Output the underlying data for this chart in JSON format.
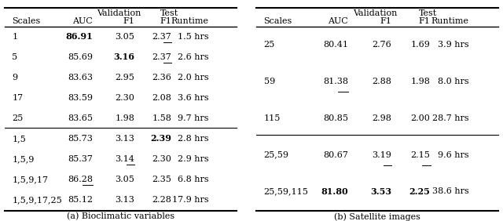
{
  "table_a": {
    "caption": "(a) Bioclimatic variables",
    "rows": [
      {
        "scales": "1",
        "auc": "86.91",
        "val_f1": "3.05",
        "test_f1": "2.37",
        "runtime": "1.5 hrs",
        "bold_auc": true,
        "bold_vf1": false,
        "bold_tf1": false,
        "ul_auc": false,
        "ul_vf1": false,
        "ul_tf1": true
      },
      {
        "scales": "5",
        "auc": "85.69",
        "val_f1": "3.16",
        "test_f1": "2.37",
        "runtime": "2.6 hrs",
        "bold_auc": false,
        "bold_vf1": true,
        "bold_tf1": false,
        "ul_auc": false,
        "ul_vf1": false,
        "ul_tf1": true
      },
      {
        "scales": "9",
        "auc": "83.63",
        "val_f1": "2.95",
        "test_f1": "2.36",
        "runtime": "2.0 hrs",
        "bold_auc": false,
        "bold_vf1": false,
        "bold_tf1": false,
        "ul_auc": false,
        "ul_vf1": false,
        "ul_tf1": false
      },
      {
        "scales": "17",
        "auc": "83.59",
        "val_f1": "2.30",
        "test_f1": "2.08",
        "runtime": "3.6 hrs",
        "bold_auc": false,
        "bold_vf1": false,
        "bold_tf1": false,
        "ul_auc": false,
        "ul_vf1": false,
        "ul_tf1": false
      },
      {
        "scales": "25",
        "auc": "83.65",
        "val_f1": "1.98",
        "test_f1": "1.58",
        "runtime": "9.7 hrs",
        "bold_auc": false,
        "bold_vf1": false,
        "bold_tf1": false,
        "ul_auc": false,
        "ul_vf1": false,
        "ul_tf1": false
      },
      {
        "scales": "1,5",
        "auc": "85.73",
        "val_f1": "3.13",
        "test_f1": "2.39",
        "runtime": "2.8 hrs",
        "bold_auc": false,
        "bold_vf1": false,
        "bold_tf1": true,
        "ul_auc": false,
        "ul_vf1": false,
        "ul_tf1": false
      },
      {
        "scales": "1,5,9",
        "auc": "85.37",
        "val_f1": "3.14",
        "test_f1": "2.30",
        "runtime": "2.9 hrs",
        "bold_auc": false,
        "bold_vf1": false,
        "bold_tf1": false,
        "ul_auc": false,
        "ul_vf1": true,
        "ul_tf1": false
      },
      {
        "scales": "1,5,9,17",
        "auc": "86.28",
        "val_f1": "3.05",
        "test_f1": "2.35",
        "runtime": "6.8 hrs",
        "bold_auc": false,
        "bold_vf1": false,
        "bold_tf1": false,
        "ul_auc": true,
        "ul_vf1": false,
        "ul_tf1": false
      },
      {
        "scales": "1,5,9,17,25",
        "auc": "85.12",
        "val_f1": "3.13",
        "test_f1": "2.28",
        "runtime": "17.9 hrs",
        "bold_auc": false,
        "bold_vf1": false,
        "bold_tf1": false,
        "ul_auc": false,
        "ul_vf1": false,
        "ul_tf1": false
      }
    ],
    "n_single": 5
  },
  "table_b": {
    "caption": "(b) Satellite images",
    "rows": [
      {
        "scales": "25",
        "auc": "80.41",
        "val_f1": "2.76",
        "test_f1": "1.69",
        "runtime": "3.9 hrs",
        "bold_auc": false,
        "bold_vf1": false,
        "bold_tf1": false,
        "ul_auc": false,
        "ul_vf1": false,
        "ul_tf1": false
      },
      {
        "scales": "59",
        "auc": "81.38",
        "val_f1": "2.88",
        "test_f1": "1.98",
        "runtime": "8.0 hrs",
        "bold_auc": false,
        "bold_vf1": false,
        "bold_tf1": false,
        "ul_auc": true,
        "ul_vf1": false,
        "ul_tf1": false
      },
      {
        "scales": "115",
        "auc": "80.85",
        "val_f1": "2.98",
        "test_f1": "2.00",
        "runtime": "28.7 hrs",
        "bold_auc": false,
        "bold_vf1": false,
        "bold_tf1": false,
        "ul_auc": false,
        "ul_vf1": false,
        "ul_tf1": false
      },
      {
        "scales": "25,59",
        "auc": "80.67",
        "val_f1": "3.19",
        "test_f1": "2.15",
        "runtime": "9.6 hrs",
        "bold_auc": false,
        "bold_vf1": false,
        "bold_tf1": false,
        "ul_auc": false,
        "ul_vf1": true,
        "ul_tf1": true
      },
      {
        "scales": "25,59,115",
        "auc": "81.80",
        "val_f1": "3.53",
        "test_f1": "2.25",
        "runtime": "38.6 hrs",
        "bold_auc": true,
        "bold_vf1": true,
        "bold_tf1": true,
        "ul_auc": false,
        "ul_vf1": false,
        "ul_tf1": false
      }
    ],
    "n_single": 3
  }
}
